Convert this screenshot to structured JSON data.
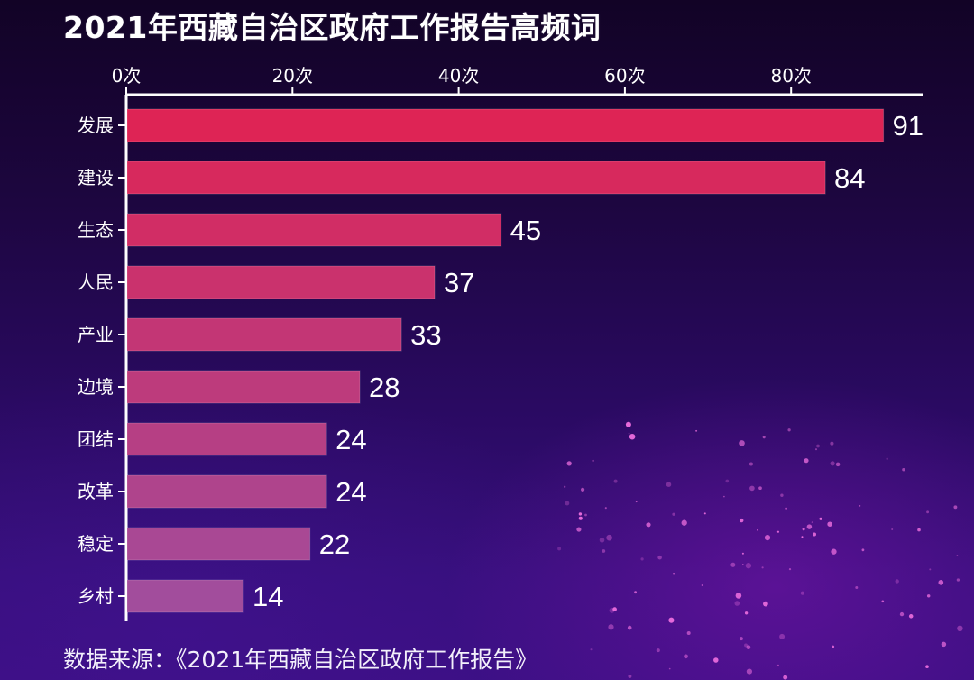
{
  "title": "2021年西藏自治区政府工作报告高频词",
  "source": {
    "label": "数据来源：",
    "text": "《2021年西藏自治区政府工作报告》"
  },
  "colors": {
    "bar_top": "#de2455",
    "bar_bottom": "#a24d9c",
    "axis": "#ffffff",
    "text": "#ffffff"
  },
  "chart_data": {
    "type": "bar",
    "orientation": "horizontal",
    "title": "2021年西藏自治区政府工作报告高频词",
    "categories": [
      "发展",
      "建设",
      "生态",
      "人民",
      "产业",
      "边境",
      "团结",
      "改革",
      "稳定",
      "乡村"
    ],
    "values": [
      91,
      84,
      45,
      37,
      33,
      28,
      24,
      24,
      22,
      14
    ],
    "x_axis": {
      "position": "top",
      "ticks": [
        0,
        20,
        40,
        60,
        80
      ],
      "tick_labels": [
        "0次",
        "20次",
        "40次",
        "60次",
        "80次"
      ],
      "range": [
        0,
        96
      ]
    },
    "grid": false,
    "data_labels": true,
    "legend": "none"
  }
}
